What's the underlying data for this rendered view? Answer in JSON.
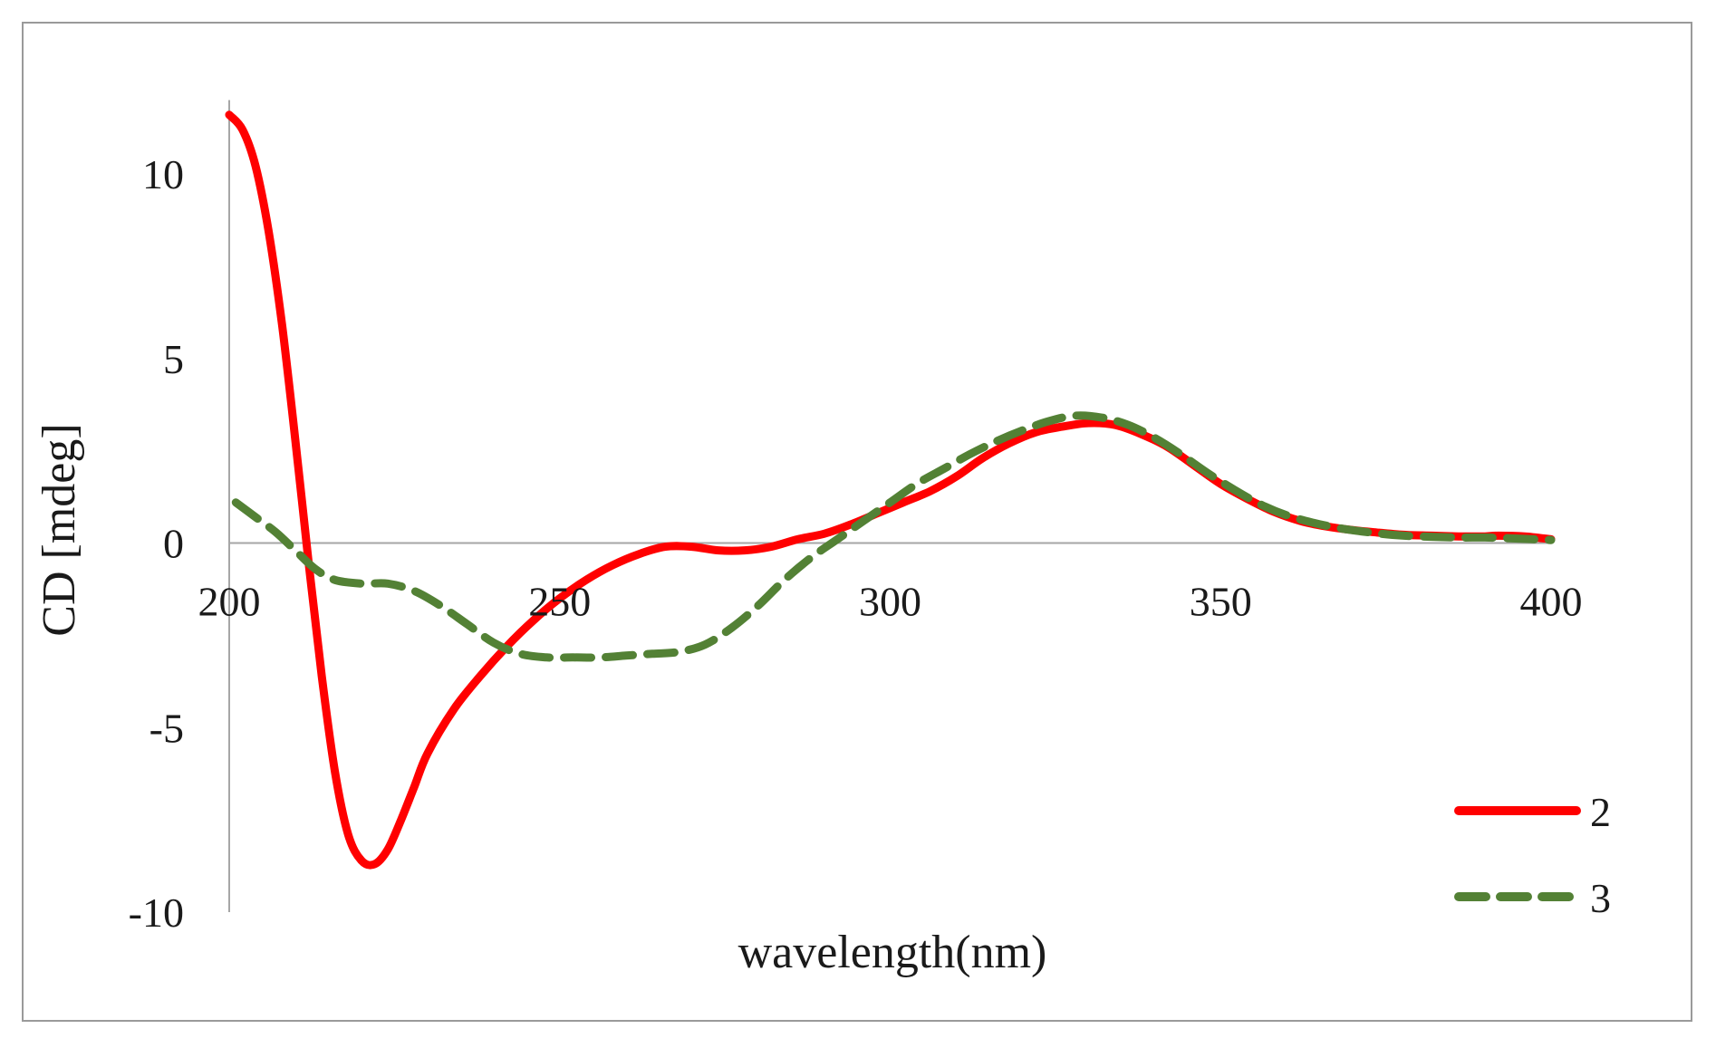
{
  "chart_data": {
    "type": "line",
    "title": "",
    "xlabel": "wavelength(nm)",
    "ylabel": "CD [mdeg]",
    "xlim": [
      200,
      400
    ],
    "ylim": [
      -10,
      12
    ],
    "x_ticks": [
      200,
      250,
      300,
      350,
      400
    ],
    "x_tick_labels": [
      "200",
      "250",
      "300",
      "350",
      "400"
    ],
    "y_ticks": [
      -10,
      -5,
      0,
      5,
      10
    ],
    "y_tick_labels": [
      "-10",
      "-5",
      "0",
      "5",
      "10"
    ],
    "grid": false,
    "legend_position": "bottom-right",
    "series": [
      {
        "name": "2",
        "color": "#ff0000",
        "style": "solid",
        "points": [
          [
            200,
            11.6
          ],
          [
            202,
            11.2
          ],
          [
            204,
            10.2
          ],
          [
            206,
            8.4
          ],
          [
            208,
            5.9
          ],
          [
            210,
            2.8
          ],
          [
            212,
            -0.5
          ],
          [
            214,
            -3.6
          ],
          [
            216,
            -6.2
          ],
          [
            218,
            -7.9
          ],
          [
            220,
            -8.6
          ],
          [
            222,
            -8.7
          ],
          [
            224,
            -8.3
          ],
          [
            226,
            -7.5
          ],
          [
            228,
            -6.6
          ],
          [
            230,
            -5.7
          ],
          [
            234,
            -4.5
          ],
          [
            238,
            -3.6
          ],
          [
            242,
            -2.8
          ],
          [
            246,
            -2.1
          ],
          [
            250,
            -1.5
          ],
          [
            254,
            -1.0
          ],
          [
            258,
            -0.6
          ],
          [
            262,
            -0.3
          ],
          [
            266,
            -0.1
          ],
          [
            270,
            -0.1
          ],
          [
            274,
            -0.2
          ],
          [
            278,
            -0.2
          ],
          [
            282,
            -0.1
          ],
          [
            286,
            0.1
          ],
          [
            290,
            0.25
          ],
          [
            294,
            0.5
          ],
          [
            298,
            0.8
          ],
          [
            302,
            1.1
          ],
          [
            306,
            1.4
          ],
          [
            310,
            1.8
          ],
          [
            314,
            2.3
          ],
          [
            318,
            2.7
          ],
          [
            322,
            3.0
          ],
          [
            326,
            3.15
          ],
          [
            330,
            3.25
          ],
          [
            334,
            3.2
          ],
          [
            338,
            2.95
          ],
          [
            342,
            2.6
          ],
          [
            346,
            2.1
          ],
          [
            350,
            1.6
          ],
          [
            354,
            1.2
          ],
          [
            358,
            0.85
          ],
          [
            362,
            0.6
          ],
          [
            366,
            0.45
          ],
          [
            370,
            0.35
          ],
          [
            374,
            0.28
          ],
          [
            378,
            0.22
          ],
          [
            382,
            0.2
          ],
          [
            386,
            0.18
          ],
          [
            390,
            0.18
          ],
          [
            392,
            0.2
          ],
          [
            396,
            0.18
          ],
          [
            400,
            0.1
          ]
        ]
      },
      {
        "name": "3",
        "color": "#538135",
        "style": "dashed",
        "points": [
          [
            201,
            1.1
          ],
          [
            204,
            0.7
          ],
          [
            207,
            0.3
          ],
          [
            210,
            -0.2
          ],
          [
            213,
            -0.7
          ],
          [
            216,
            -1.0
          ],
          [
            220,
            -1.1
          ],
          [
            224,
            -1.1
          ],
          [
            228,
            -1.3
          ],
          [
            232,
            -1.7
          ],
          [
            236,
            -2.2
          ],
          [
            240,
            -2.7
          ],
          [
            244,
            -3.0
          ],
          [
            248,
            -3.1
          ],
          [
            252,
            -3.1
          ],
          [
            256,
            -3.1
          ],
          [
            260,
            -3.05
          ],
          [
            264,
            -3.0
          ],
          [
            268,
            -2.95
          ],
          [
            272,
            -2.75
          ],
          [
            276,
            -2.3
          ],
          [
            280,
            -1.7
          ],
          [
            284,
            -1.0
          ],
          [
            288,
            -0.4
          ],
          [
            292,
            0.1
          ],
          [
            296,
            0.6
          ],
          [
            300,
            1.1
          ],
          [
            304,
            1.6
          ],
          [
            308,
            2.0
          ],
          [
            312,
            2.4
          ],
          [
            316,
            2.75
          ],
          [
            320,
            3.05
          ],
          [
            324,
            3.3
          ],
          [
            328,
            3.45
          ],
          [
            332,
            3.4
          ],
          [
            336,
            3.2
          ],
          [
            340,
            2.85
          ],
          [
            344,
            2.4
          ],
          [
            348,
            1.9
          ],
          [
            352,
            1.45
          ],
          [
            356,
            1.05
          ],
          [
            360,
            0.75
          ],
          [
            364,
            0.55
          ],
          [
            368,
            0.4
          ],
          [
            372,
            0.3
          ],
          [
            376,
            0.22
          ],
          [
            380,
            0.18
          ],
          [
            386,
            0.15
          ],
          [
            390,
            0.15
          ],
          [
            395,
            0.12
          ],
          [
            400,
            0.08
          ]
        ]
      }
    ]
  }
}
